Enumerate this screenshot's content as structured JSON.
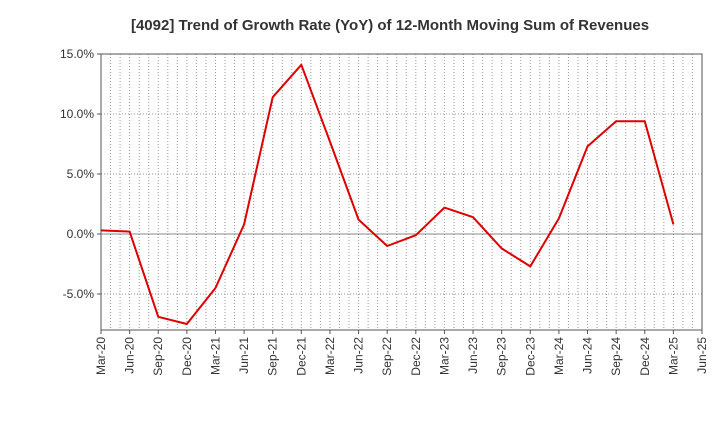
{
  "chart_data": {
    "type": "line",
    "title": "[4092]  Trend of Growth Rate (YoY) of 12-Month Moving Sum of Revenues",
    "xlabel": "",
    "ylabel": "",
    "x_tick_labels": [
      "Mar-20",
      "Jun-20",
      "Sep-20",
      "Dec-20",
      "Mar-21",
      "Jun-21",
      "Sep-21",
      "Dec-21",
      "Mar-22",
      "Jun-22",
      "Sep-22",
      "Dec-22",
      "Mar-23",
      "Jun-23",
      "Sep-23",
      "Dec-23",
      "Mar-24",
      "Jun-24",
      "Sep-24",
      "Dec-24",
      "Mar-25",
      "Jun-25"
    ],
    "y_ticks": [
      15,
      10,
      5,
      0,
      -5
    ],
    "y_tick_labels": [
      "15.0%",
      "10.0%",
      "5.0%",
      "0.0%",
      "-5.0%"
    ],
    "ylim": [
      -8,
      15
    ],
    "grid": true,
    "series": [
      {
        "color": "#dd0000",
        "x": [
          "Mar-20",
          "Jun-20",
          "Sep-20",
          "Dec-20",
          "Mar-21",
          "Jun-21",
          "Sep-21",
          "Dec-21",
          "Mar-22",
          "Jun-22",
          "Sep-22",
          "Dec-22",
          "Mar-23",
          "Jun-23",
          "Sep-23",
          "Dec-23",
          "Mar-24",
          "Jun-24",
          "Sep-24",
          "Dec-24",
          "Mar-25"
        ],
        "values": [
          0.3,
          0.2,
          -6.9,
          -7.5,
          -4.5,
          0.8,
          11.4,
          14.1,
          7.7,
          1.2,
          -1.0,
          -0.1,
          2.2,
          1.4,
          -1.2,
          -2.7,
          1.3,
          7.3,
          9.4,
          9.4,
          0.8
        ]
      }
    ]
  }
}
